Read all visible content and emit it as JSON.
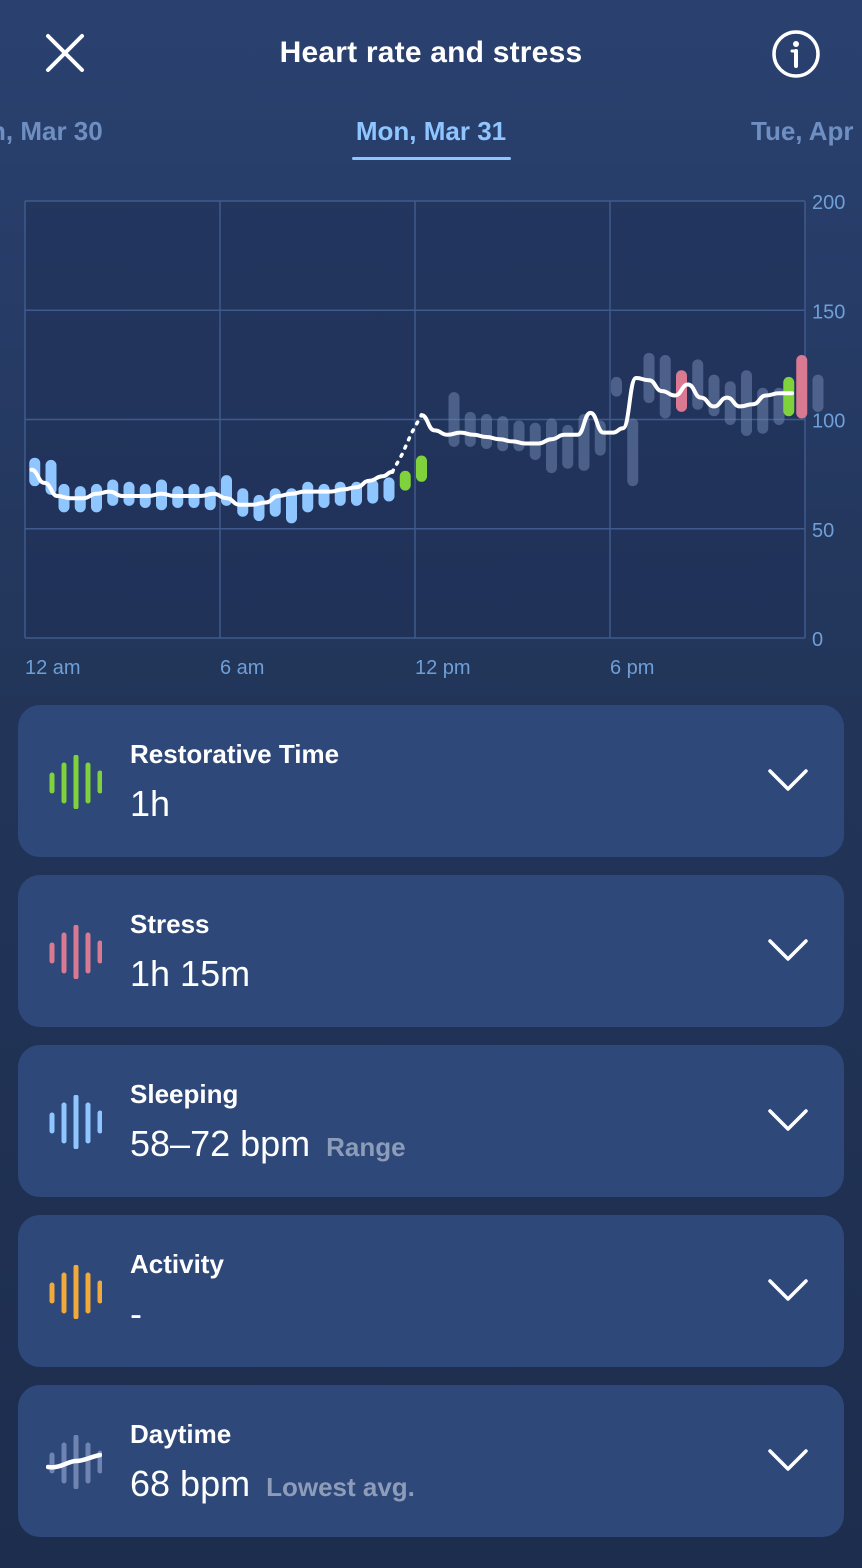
{
  "header": {
    "title": "Heart rate and stress"
  },
  "date_tabs": {
    "prev": "n, Mar 30",
    "active": "Mon, Mar 31",
    "next": "Tue, Apr"
  },
  "colors": {
    "background": "#223559",
    "card": "#2e4879",
    "restorative": "#7fd23c",
    "stress": "#d97a92",
    "sleeping": "#8fc6ff",
    "activity": "#f0a93a",
    "daytime": "#6f84b0",
    "line": "#ffffff"
  },
  "chart_data": {
    "type": "line",
    "x_ticks": [
      "12 am",
      "6 am",
      "12 pm",
      "6 pm"
    ],
    "y_ticks": [
      "200",
      "150",
      "100",
      "50",
      "0"
    ],
    "ylim": [
      0,
      200
    ],
    "xlim_hours": [
      0,
      24
    ],
    "line": {
      "x_hours": [
        0.2,
        0.6,
        1.0,
        1.4,
        1.8,
        2.2,
        2.6,
        3.0,
        3.4,
        3.8,
        4.2,
        4.6,
        5.0,
        5.4,
        5.8,
        6.2,
        6.6,
        7.0,
        7.4,
        7.8,
        8.2,
        8.6,
        9.0,
        9.4,
        9.8,
        10.2,
        10.6,
        11.0,
        11.3
      ],
      "bpm": [
        77,
        71,
        65,
        64,
        64,
        66,
        67,
        65,
        65,
        65,
        66,
        65,
        65,
        65,
        66,
        64,
        61,
        61,
        62,
        65,
        66,
        67,
        67,
        67,
        68,
        69,
        72,
        74,
        76
      ]
    },
    "dotted_gap": {
      "x_hours": [
        11.3,
        11.6,
        11.9,
        12.2
      ],
      "bpm": [
        76,
        84,
        94,
        102
      ]
    },
    "line2": {
      "x_hours": [
        12.2,
        12.6,
        13.0,
        13.4,
        13.8,
        14.2,
        14.6,
        15.0,
        15.4,
        15.8,
        16.2,
        16.6,
        17.0,
        17.4,
        17.8,
        18.1,
        18.4,
        18.8,
        19.2,
        19.6,
        20.0,
        20.4,
        20.8,
        21.2,
        21.6,
        22.0,
        22.4,
        22.8,
        23.2,
        23.6
      ],
      "bpm": [
        102,
        95,
        93,
        94,
        93,
        92,
        91,
        90,
        89,
        89,
        91,
        93,
        93,
        103,
        94,
        94,
        96,
        119,
        118,
        113,
        111,
        116,
        110,
        106,
        110,
        106,
        107,
        111,
        112,
        112
      ]
    },
    "bars": [
      {
        "x": 0.3,
        "lo": 72,
        "hi": 80,
        "zone": "sleeping"
      },
      {
        "x": 0.8,
        "lo": 68,
        "hi": 79,
        "zone": "sleeping"
      },
      {
        "x": 1.2,
        "lo": 60,
        "hi": 68,
        "zone": "sleeping"
      },
      {
        "x": 1.7,
        "lo": 60,
        "hi": 67,
        "zone": "sleeping"
      },
      {
        "x": 2.2,
        "lo": 60,
        "hi": 68,
        "zone": "sleeping"
      },
      {
        "x": 2.7,
        "lo": 63,
        "hi": 70,
        "zone": "sleeping"
      },
      {
        "x": 3.2,
        "lo": 63,
        "hi": 69,
        "zone": "sleeping"
      },
      {
        "x": 3.7,
        "lo": 62,
        "hi": 68,
        "zone": "sleeping"
      },
      {
        "x": 4.2,
        "lo": 61,
        "hi": 70,
        "zone": "sleeping"
      },
      {
        "x": 4.7,
        "lo": 62,
        "hi": 67,
        "zone": "sleeping"
      },
      {
        "x": 5.2,
        "lo": 62,
        "hi": 68,
        "zone": "sleeping"
      },
      {
        "x": 5.7,
        "lo": 61,
        "hi": 67,
        "zone": "sleeping"
      },
      {
        "x": 6.2,
        "lo": 63,
        "hi": 72,
        "zone": "sleeping"
      },
      {
        "x": 6.7,
        "lo": 58,
        "hi": 66,
        "zone": "sleeping"
      },
      {
        "x": 7.2,
        "lo": 56,
        "hi": 63,
        "zone": "sleeping"
      },
      {
        "x": 7.7,
        "lo": 58,
        "hi": 66,
        "zone": "sleeping"
      },
      {
        "x": 8.2,
        "lo": 55,
        "hi": 66,
        "zone": "sleeping"
      },
      {
        "x": 8.7,
        "lo": 60,
        "hi": 69,
        "zone": "sleeping"
      },
      {
        "x": 9.2,
        "lo": 62,
        "hi": 68,
        "zone": "sleeping"
      },
      {
        "x": 9.7,
        "lo": 63,
        "hi": 69,
        "zone": "sleeping"
      },
      {
        "x": 10.2,
        "lo": 63,
        "hi": 69,
        "zone": "sleeping"
      },
      {
        "x": 10.7,
        "lo": 64,
        "hi": 70,
        "zone": "sleeping"
      },
      {
        "x": 11.2,
        "lo": 65,
        "hi": 71,
        "zone": "sleeping"
      },
      {
        "x": 11.7,
        "lo": 70,
        "hi": 74,
        "zone": "restorative"
      },
      {
        "x": 12.2,
        "lo": 74,
        "hi": 81,
        "zone": "restorative"
      },
      {
        "x": 13.2,
        "lo": 90,
        "hi": 110,
        "zone": "daytime"
      },
      {
        "x": 13.7,
        "lo": 90,
        "hi": 101,
        "zone": "daytime"
      },
      {
        "x": 14.2,
        "lo": 89,
        "hi": 100,
        "zone": "daytime"
      },
      {
        "x": 14.7,
        "lo": 88,
        "hi": 99,
        "zone": "daytime"
      },
      {
        "x": 15.2,
        "lo": 88,
        "hi": 97,
        "zone": "daytime"
      },
      {
        "x": 15.7,
        "lo": 84,
        "hi": 96,
        "zone": "daytime"
      },
      {
        "x": 16.2,
        "lo": 78,
        "hi": 98,
        "zone": "daytime"
      },
      {
        "x": 16.7,
        "lo": 80,
        "hi": 95,
        "zone": "daytime"
      },
      {
        "x": 17.2,
        "lo": 79,
        "hi": 100,
        "zone": "daytime"
      },
      {
        "x": 17.7,
        "lo": 86,
        "hi": 97,
        "zone": "daytime"
      },
      {
        "x": 18.2,
        "lo": 113,
        "hi": 117,
        "zone": "daytime"
      },
      {
        "x": 18.7,
        "lo": 72,
        "hi": 98,
        "zone": "daytime"
      },
      {
        "x": 19.2,
        "lo": 110,
        "hi": 128,
        "zone": "daytime"
      },
      {
        "x": 19.7,
        "lo": 103,
        "hi": 127,
        "zone": "daytime"
      },
      {
        "x": 20.2,
        "lo": 106,
        "hi": 120,
        "zone": "stress"
      },
      {
        "x": 20.7,
        "lo": 107,
        "hi": 125,
        "zone": "daytime"
      },
      {
        "x": 21.2,
        "lo": 104,
        "hi": 118,
        "zone": "daytime"
      },
      {
        "x": 21.7,
        "lo": 100,
        "hi": 115,
        "zone": "daytime"
      },
      {
        "x": 22.2,
        "lo": 95,
        "hi": 120,
        "zone": "daytime"
      },
      {
        "x": 22.7,
        "lo": 96,
        "hi": 112,
        "zone": "daytime"
      },
      {
        "x": 23.2,
        "lo": 100,
        "hi": 112,
        "zone": "daytime"
      },
      {
        "x": 23.5,
        "lo": 104,
        "hi": 117,
        "zone": "restorative"
      },
      {
        "x": 23.9,
        "lo": 103,
        "hi": 127,
        "zone": "stress"
      },
      {
        "x": 24.4,
        "lo": 106,
        "hi": 118,
        "zone": "daytime"
      }
    ]
  },
  "cards": [
    {
      "label": "Restorative Time",
      "value": "1h",
      "sub": "",
      "icon": "restorative-wave-icon"
    },
    {
      "label": "Stress",
      "value": "1h 15m",
      "sub": "",
      "icon": "stress-wave-icon"
    },
    {
      "label": "Sleeping",
      "value": "58–72 bpm",
      "sub": "Range",
      "icon": "sleeping-wave-icon"
    },
    {
      "label": "Activity",
      "value": "-",
      "sub": "",
      "icon": "activity-wave-icon"
    },
    {
      "label": "Daytime",
      "value": "68 bpm",
      "sub": "Lowest avg.",
      "icon": "daytime-wave-icon"
    }
  ]
}
